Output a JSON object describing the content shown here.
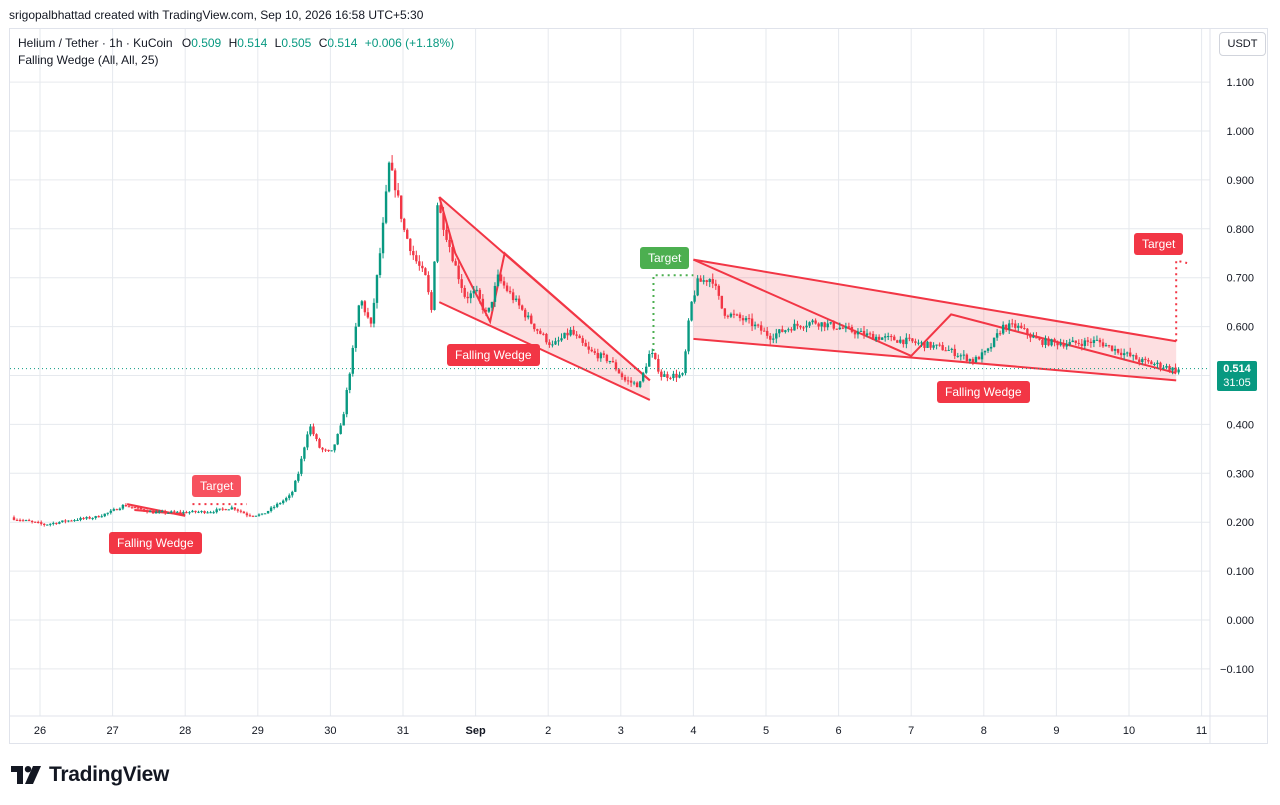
{
  "header": {
    "credit": "srigopalbhattad created with TradingView.com, Sep 10, 2026 16:58 UTC+5:30"
  },
  "legend": {
    "symbol": "Helium / Tether · 1h · KuCoin",
    "open_key": "O",
    "open": "0.509",
    "high_key": "H",
    "high": "0.514",
    "low_key": "L",
    "low": "0.505",
    "close_key": "C",
    "close": "0.514",
    "change": "+0.006 (+1.18%)",
    "indicator": "Falling Wedge (All, All, 25)"
  },
  "currency": "USDT",
  "last_price": {
    "value": "0.514",
    "countdown": "31:05"
  },
  "brand": {
    "name": "TradingView"
  },
  "colors": {
    "up": "#089981",
    "down": "#f23645",
    "grid": "#e6e9ee",
    "pattern": "#f23645",
    "pattern_fill": "rgba(242,54,69,0.16)",
    "target_green": "#4caf50"
  },
  "chart_data": {
    "type": "candlestick",
    "x_ticks": [
      "26",
      "27",
      "28",
      "29",
      "30",
      "31",
      "Sep",
      "2",
      "3",
      "4",
      "5",
      "6",
      "7",
      "8",
      "9",
      "10",
      "11"
    ],
    "y_ticks": [
      "1.100",
      "1.000",
      "0.900",
      "0.800",
      "0.700",
      "0.600",
      "0.500",
      "0.400",
      "0.300",
      "0.200",
      "0.100",
      "0.000",
      "−0.100"
    ],
    "ylim": [
      -0.17,
      1.2
    ],
    "grid": true,
    "price_path": [
      [
        25.6,
        0.21
      ],
      [
        26.1,
        0.195
      ],
      [
        26.5,
        0.205
      ],
      [
        26.8,
        0.21
      ],
      [
        27.0,
        0.22
      ],
      [
        27.2,
        0.235
      ],
      [
        27.6,
        0.22
      ],
      [
        28.0,
        0.22
      ],
      [
        28.4,
        0.222
      ],
      [
        28.7,
        0.23
      ],
      [
        28.9,
        0.215
      ],
      [
        29.1,
        0.215
      ],
      [
        29.3,
        0.235
      ],
      [
        29.5,
        0.255
      ],
      [
        29.6,
        0.3
      ],
      [
        29.75,
        0.4
      ],
      [
        29.9,
        0.35
      ],
      [
        30.05,
        0.34
      ],
      [
        30.2,
        0.4
      ],
      [
        30.35,
        0.55
      ],
      [
        30.45,
        0.66
      ],
      [
        30.6,
        0.6
      ],
      [
        30.75,
        0.78
      ],
      [
        30.85,
        0.93
      ],
      [
        30.95,
        0.88
      ],
      [
        31.05,
        0.8
      ],
      [
        31.2,
        0.74
      ],
      [
        31.35,
        0.7
      ],
      [
        31.45,
        0.62
      ],
      [
        31.5,
        0.86
      ],
      [
        31.75,
        0.73
      ],
      [
        31.9,
        0.66
      ],
      [
        32.05,
        0.67
      ],
      [
        32.2,
        0.62
      ],
      [
        32.35,
        0.7
      ],
      [
        32.6,
        0.65
      ],
      [
        32.85,
        0.6
      ],
      [
        33.1,
        0.56
      ],
      [
        33.35,
        0.59
      ],
      [
        33.6,
        0.55
      ],
      [
        33.9,
        0.53
      ],
      [
        34.1,
        0.49
      ],
      [
        34.3,
        0.48
      ],
      [
        34.45,
        0.55
      ],
      [
        34.6,
        0.5
      ],
      [
        34.9,
        0.5
      ],
      [
        35.0,
        0.64
      ],
      [
        35.1,
        0.69
      ],
      [
        35.3,
        0.7
      ],
      [
        35.45,
        0.63
      ],
      [
        35.8,
        0.61
      ],
      [
        36.1,
        0.58
      ],
      [
        36.4,
        0.6
      ],
      [
        36.7,
        0.61
      ],
      [
        37.0,
        0.6
      ],
      [
        37.5,
        0.58
      ],
      [
        38.0,
        0.57
      ],
      [
        38.5,
        0.555
      ],
      [
        38.9,
        0.53
      ],
      [
        39.1,
        0.55
      ],
      [
        39.3,
        0.6
      ],
      [
        39.5,
        0.6
      ],
      [
        39.8,
        0.57
      ],
      [
        40.2,
        0.565
      ],
      [
        40.6,
        0.57
      ],
      [
        40.9,
        0.55
      ],
      [
        41.2,
        0.53
      ],
      [
        41.5,
        0.52
      ],
      [
        41.7,
        0.51
      ],
      [
        41.8,
        0.514
      ]
    ],
    "patterns": [
      {
        "name": "Falling Wedge",
        "target_label": "Target",
        "color": "red",
        "upper": [
          [
            27.2,
            0.237
          ],
          [
            28.0,
            0.213
          ]
        ],
        "lower": [
          [
            27.3,
            0.225
          ],
          [
            28.0,
            0.216
          ]
        ],
        "target_line": [
          [
            28.1,
            0.237
          ],
          [
            28.85,
            0.237
          ]
        ]
      },
      {
        "name": "Falling Wedge",
        "color": "red",
        "upper": [
          [
            31.5,
            0.865
          ],
          [
            34.4,
            0.49
          ]
        ],
        "lower": [
          [
            31.5,
            0.65
          ],
          [
            34.4,
            0.45
          ]
        ],
        "zigzag": [
          [
            31.5,
            0.865
          ],
          [
            31.72,
            0.75
          ],
          [
            32.2,
            0.61
          ],
          [
            32.4,
            0.75
          ],
          [
            34.4,
            0.49
          ]
        ]
      },
      {
        "name": "Target",
        "target_label": "Target",
        "color": "green",
        "target_line": [
          [
            34.45,
            0.55
          ],
          [
            34.45,
            0.705
          ],
          [
            35.0,
            0.705
          ]
        ]
      },
      {
        "name": "Falling Wedge",
        "target_label": "Target",
        "color": "red",
        "upper": [
          [
            35.0,
            0.737
          ],
          [
            41.65,
            0.57
          ]
        ],
        "lower": [
          [
            35.0,
            0.575
          ],
          [
            41.65,
            0.49
          ]
        ],
        "zigzag": [
          [
            35.0,
            0.737
          ],
          [
            38.0,
            0.54
          ],
          [
            38.55,
            0.625
          ],
          [
            41.65,
            0.505
          ]
        ],
        "target_line": [
          [
            41.65,
            0.57
          ],
          [
            41.65,
            0.735
          ],
          [
            41.8,
            0.73
          ]
        ]
      }
    ]
  },
  "labels": {
    "target_1": "Target",
    "wedge_1": "Falling Wedge",
    "wedge_2": "Falling Wedge",
    "target_2": "Target",
    "wedge_3": "Falling Wedge",
    "target_3": "Target"
  }
}
